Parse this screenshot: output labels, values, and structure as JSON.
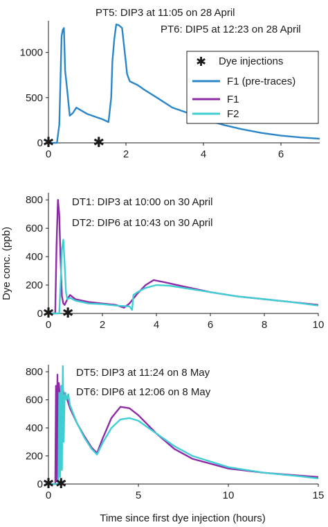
{
  "colors": {
    "f1_pre": "#2a86c8",
    "f1": "#8e2aa8",
    "f2": "#3fcfd3",
    "dye": "#f28c28",
    "axis": "#1a1a1a"
  },
  "legend": {
    "dye": "Dye injections",
    "f1_pre": "F1 (pre-traces)",
    "f1": "F1",
    "f2": "F2"
  },
  "ylabel": "Dye conc. (ppb)",
  "xlabel": "Time since first dye injection (hours)",
  "chart_data": [
    {
      "type": "line",
      "panel": "top",
      "xlim": [
        0,
        7
      ],
      "ylim": [
        0,
        1350
      ],
      "xticks": [
        "0",
        "2",
        "4",
        "6"
      ],
      "xtick_values": [
        0,
        2,
        4,
        6
      ],
      "yticks": [
        "0",
        "500",
        "1000"
      ],
      "ytick_values": [
        0,
        500,
        1000
      ],
      "annotations": [
        "PT5: DIP3 at 11:05 on 28 April",
        "PT6: DIP5 at 12:23 on 28 April"
      ],
      "dye_injections_x": [
        0,
        1.3
      ],
      "legend_position": "top-right",
      "series": [
        {
          "name": "F1 (pre-traces)",
          "key": "f1_pre",
          "x": [
            0,
            0.22,
            0.28,
            0.31,
            0.34,
            0.37,
            0.4,
            0.43,
            0.48,
            0.55,
            0.63,
            0.72,
            0.8,
            1.0,
            1.2,
            1.4,
            1.55,
            1.62,
            1.65,
            1.7,
            1.75,
            1.82,
            1.9,
            1.97,
            2.03,
            2.1,
            2.2,
            2.3,
            2.5,
            2.8,
            3.2,
            3.6,
            4.0,
            4.5,
            5.0,
            5.5,
            6.0,
            6.5,
            7.0
          ],
          "y": [
            0,
            0,
            200,
            700,
            1180,
            1250,
            1270,
            800,
            600,
            300,
            330,
            390,
            370,
            320,
            290,
            260,
            230,
            500,
            900,
            1150,
            1310,
            1300,
            1270,
            1000,
            760,
            680,
            660,
            640,
            580,
            500,
            390,
            330,
            260,
            200,
            150,
            110,
            80,
            60,
            45
          ]
        }
      ]
    },
    {
      "type": "line",
      "panel": "middle",
      "xlim": [
        0,
        10
      ],
      "ylim": [
        0,
        850
      ],
      "xticks": [
        "0",
        "2",
        "4",
        "6",
        "8",
        "10"
      ],
      "xtick_values": [
        0,
        2,
        4,
        6,
        8,
        10
      ],
      "yticks": [
        "0",
        "200",
        "400",
        "600",
        "800"
      ],
      "ytick_values": [
        0,
        200,
        400,
        600,
        800
      ],
      "annotations": [
        "DT1: DIP3 at 10:00 on 30 April",
        "DT2: DIP6 at 10:43 on 30 April"
      ],
      "dye_injections_x": [
        0,
        0.72
      ],
      "series": [
        {
          "name": "F1",
          "key": "f1",
          "x": [
            0,
            0.25,
            0.3,
            0.35,
            0.4,
            0.45,
            0.5,
            0.55,
            0.6,
            0.7,
            0.8,
            1.0,
            1.5,
            2.0,
            2.5,
            2.8,
            3.0,
            3.3,
            3.6,
            3.9,
            4.3,
            5.0,
            6.0,
            7.0,
            8.0,
            9.0,
            10.0
          ],
          "y": [
            0,
            0,
            480,
            800,
            700,
            380,
            120,
            70,
            60,
            100,
            130,
            100,
            80,
            70,
            60,
            40,
            70,
            140,
            200,
            235,
            220,
            190,
            150,
            120,
            100,
            80,
            60
          ]
        },
        {
          "name": "F2",
          "key": "f2",
          "x": [
            0,
            0.4,
            0.45,
            0.5,
            0.55,
            0.6,
            0.65,
            0.7,
            0.8,
            1.0,
            1.5,
            2.0,
            2.5,
            3.0,
            3.1,
            3.15,
            3.3,
            3.6,
            4.0,
            4.5,
            5.0,
            6.0,
            7.0,
            8.0,
            9.0,
            10.0
          ],
          "y": [
            0,
            0,
            200,
            450,
            520,
            350,
            150,
            100,
            110,
            90,
            70,
            65,
            55,
            50,
            25,
            130,
            150,
            180,
            200,
            195,
            180,
            150,
            120,
            100,
            80,
            55
          ]
        }
      ]
    },
    {
      "type": "line",
      "panel": "bottom",
      "xlim": [
        0,
        15
      ],
      "ylim": [
        0,
        850
      ],
      "xticks": [
        "0",
        "5",
        "10",
        "15"
      ],
      "xtick_values": [
        0,
        5,
        10,
        15
      ],
      "yticks": [
        "0",
        "200",
        "400",
        "600",
        "800"
      ],
      "ytick_values": [
        0,
        200,
        400,
        600,
        800
      ],
      "annotations": [
        "DT5: DIP3 at 11:24 on 8 May",
        "DT6: DIP6 at 12:06 on 8 May"
      ],
      "dye_injections_x": [
        0,
        0.7
      ],
      "series": [
        {
          "name": "F1",
          "key": "f1",
          "x": [
            0,
            0.38,
            0.42,
            0.46,
            0.5,
            0.54,
            0.58,
            0.62,
            0.68,
            0.75,
            0.85,
            1.0,
            1.2,
            1.6,
            2.0,
            2.4,
            2.7,
            3.0,
            3.5,
            4.0,
            4.5,
            5.0,
            6.0,
            7.0,
            8.0,
            10.0,
            12.0,
            14.0,
            15.0
          ],
          "y": [
            0,
            0,
            700,
            20,
            780,
            50,
            720,
            650,
            600,
            700,
            650,
            620,
            540,
            430,
            340,
            260,
            220,
            320,
            470,
            550,
            540,
            490,
            360,
            250,
            180,
            110,
            80,
            60,
            50
          ]
        },
        {
          "name": "F2",
          "key": "f2",
          "x": [
            0,
            0.55,
            0.6,
            0.65,
            0.7,
            0.75,
            0.8,
            0.85,
            0.9,
            0.95,
            1.0,
            1.1,
            1.2,
            1.6,
            2.0,
            2.4,
            2.7,
            3.0,
            3.5,
            4.0,
            4.5,
            5.0,
            6.0,
            7.0,
            8.0,
            10.0,
            12.0,
            14.0,
            15.0
          ],
          "y": [
            0,
            0,
            650,
            50,
            700,
            100,
            840,
            300,
            620,
            650,
            600,
            640,
            560,
            430,
            330,
            250,
            210,
            290,
            400,
            460,
            470,
            450,
            360,
            270,
            200,
            120,
            80,
            55,
            40
          ]
        }
      ]
    }
  ]
}
